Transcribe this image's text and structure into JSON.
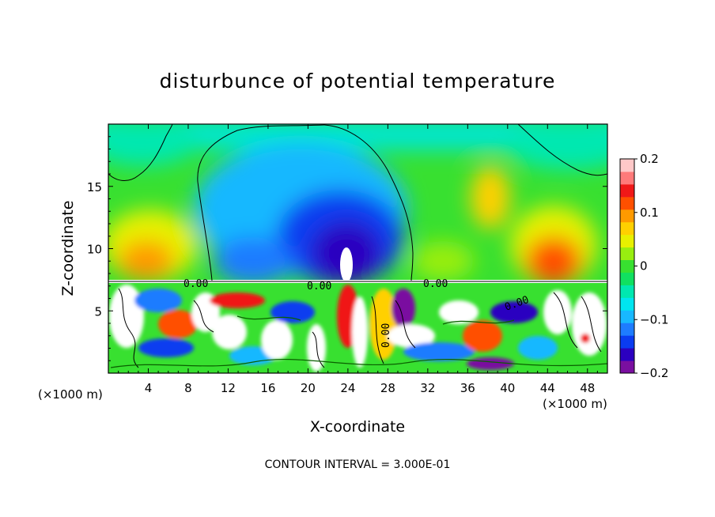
{
  "chart_data": {
    "type": "heatmap",
    "title": "disturbunce of potential temperature",
    "xlabel": "X-coordinate",
    "ylabel": "Z-coordinate",
    "x_unit_left": "(×1000 m)",
    "x_unit_right": "(×1000 m)",
    "xlim": [
      0,
      50
    ],
    "ylim": [
      0,
      20
    ],
    "x_ticks": [
      4,
      8,
      12,
      16,
      20,
      24,
      28,
      32,
      36,
      40,
      44,
      48
    ],
    "x_tick_labels": [
      "4",
      "8",
      "12",
      "16",
      "20",
      "24",
      "28",
      "32",
      "36",
      "40",
      "44",
      "48"
    ],
    "y_ticks": [
      5,
      10,
      15
    ],
    "y_tick_labels": [
      "5",
      "10",
      "15"
    ],
    "colorbar": {
      "range": [
        -0.2,
        0.2
      ],
      "ticks": [
        0.2,
        0.1,
        0,
        -0.1,
        -0.2
      ],
      "tick_labels": [
        "0.2",
        "0.1",
        "0",
        "−0.1",
        "−0.2"
      ],
      "colors": [
        "#7a0fa0",
        "#2b00c0",
        "#0a3cf0",
        "#1e7cff",
        "#18b8ff",
        "#00e6f0",
        "#00e8b0",
        "#10e060",
        "#38e030",
        "#98ee10",
        "#e8f000",
        "#ffd000",
        "#ff9a00",
        "#ff5000",
        "#f01818",
        "#ff7a7a",
        "#ffc8c8"
      ]
    },
    "contour_interval_text": "CONTOUR INTERVAL = 3.000E-01",
    "contour_labels": [
      "0.00",
      "0.00",
      "0.00",
      "0.00",
      "0.00"
    ],
    "features": [
      {
        "name": "cold core",
        "x": 24,
        "z": 10,
        "value": -0.2
      },
      {
        "name": "warm core left",
        "x": 6,
        "z": 9,
        "value": 0.1
      },
      {
        "name": "warm core right",
        "x": 45,
        "z": 9.5,
        "value": 0.15
      },
      {
        "name": "boundary layer top",
        "z": 7.3
      }
    ]
  }
}
